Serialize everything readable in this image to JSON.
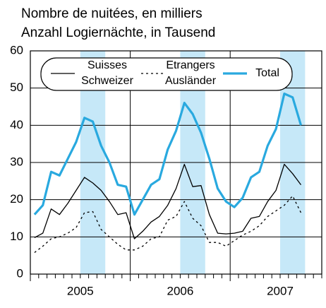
{
  "chart_data": {
    "type": "line",
    "title": [
      "Nombre de nuitées, en milliers",
      "Anzahl Logiernächte, in Tausend"
    ],
    "categories": [
      null,
      null,
      null,
      null,
      null,
      null,
      null,
      null,
      null,
      null,
      null,
      null,
      null,
      null,
      null,
      null,
      null,
      null,
      null,
      null,
      null,
      null,
      null,
      null,
      null,
      null,
      null,
      null,
      null,
      null,
      null,
      null,
      null,
      null,
      null
    ],
    "year_labels": [
      "2005",
      "2006",
      "2007"
    ],
    "ylim": [
      0,
      60
    ],
    "yticks": [
      0,
      10,
      20,
      30,
      40,
      50,
      60
    ],
    "grid": true,
    "series": [
      {
        "name": [
          "Suisses",
          "Schweizer"
        ],
        "color": "#000000",
        "dash": false,
        "values": [
          9.8,
          11,
          17.5,
          16,
          19,
          22.5,
          26,
          24.5,
          22.5,
          19.5,
          16,
          16.5,
          9.5,
          11.5,
          14,
          15.5,
          18.5,
          23,
          29.5,
          23.5,
          23.8,
          16,
          11,
          10.8,
          11,
          11.5,
          15,
          15.5,
          19.5,
          22.5,
          29.5,
          27,
          24,
          null,
          null
        ]
      },
      {
        "name": [
          "Etrangers",
          "Ausländer"
        ],
        "color": "#000000",
        "dash": true,
        "values": [
          5.8,
          7.5,
          9.5,
          10,
          11,
          12.5,
          16.5,
          16.8,
          12,
          10,
          8,
          6.5,
          6.5,
          7.5,
          9.5,
          10,
          14.5,
          15.5,
          19.5,
          15,
          13,
          8.5,
          8.5,
          7.5,
          9,
          10.5,
          11.5,
          13,
          15.5,
          17,
          18.5,
          21,
          16.5,
          null,
          null
        ]
      },
      {
        "name": [
          "Total"
        ],
        "color": "#29a9df",
        "dash": false,
        "values": [
          16,
          18.5,
          27.5,
          26.5,
          31,
          35.5,
          42,
          41,
          34.5,
          30,
          24,
          23.5,
          16,
          20,
          24,
          25.5,
          33.5,
          38.5,
          46,
          43,
          38,
          31,
          23,
          19.5,
          18,
          20.5,
          26,
          27.5,
          34.5,
          39,
          48.5,
          47.5,
          40,
          null,
          null
        ]
      }
    ]
  }
}
